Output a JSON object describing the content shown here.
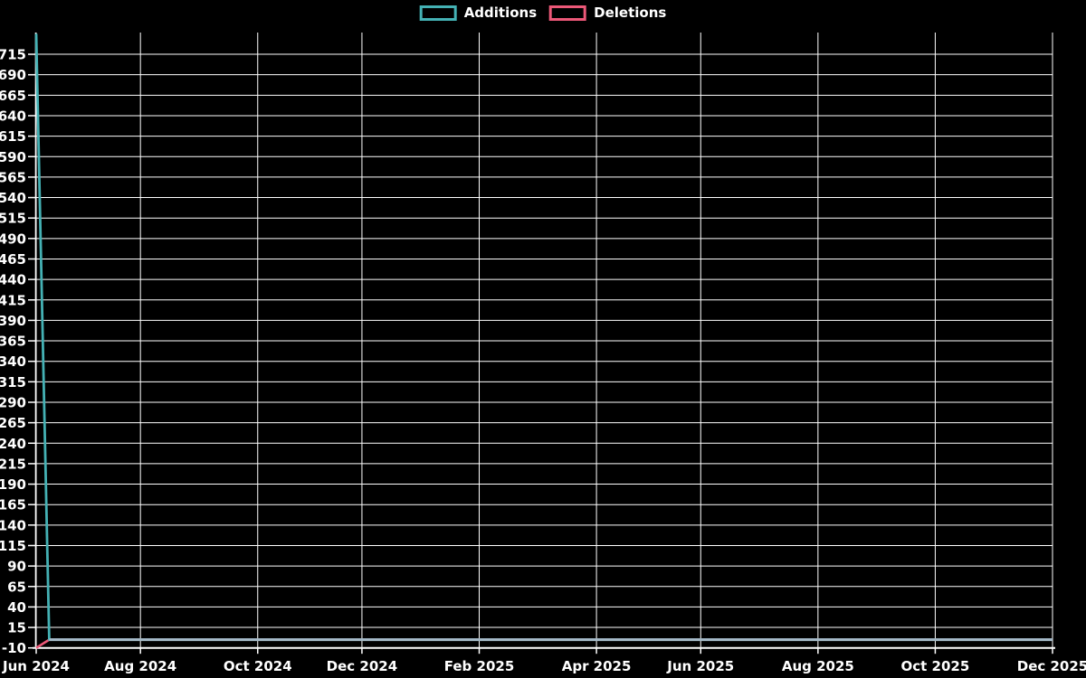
{
  "legend": {
    "items": [
      {
        "label": "Additions",
        "color": "#44b1b4"
      },
      {
        "label": "Deletions",
        "color": "#ec5878"
      }
    ]
  },
  "chart_data": {
    "type": "line",
    "title": "",
    "xlabel": "",
    "ylabel": "",
    "background_color": "#000000",
    "grid_color": "#ffffff",
    "text_color": "#ffffff",
    "grid": true,
    "legend_position": "top-center",
    "x_axis": {
      "unit": "weeks",
      "weeks_total": 78,
      "ticks": [
        {
          "label": "Jun 2024",
          "week": 0
        },
        {
          "label": "Aug 2024",
          "week": 8
        },
        {
          "label": "Oct 2024",
          "week": 17
        },
        {
          "label": "Dec 2024",
          "week": 25
        },
        {
          "label": "Feb 2025",
          "week": 34
        },
        {
          "label": "Apr 2025",
          "week": 43
        },
        {
          "label": "Jun 2025",
          "week": 51
        },
        {
          "label": "Aug 2025",
          "week": 60
        },
        {
          "label": "Oct 2025",
          "week": 69
        },
        {
          "label": "Dec 2025",
          "week": 78
        }
      ]
    },
    "y_axis": {
      "min": -10,
      "max": 740,
      "tick_step": 25,
      "tick_labels": [
        715,
        690,
        665,
        640,
        615,
        590,
        565,
        540,
        515,
        490,
        465,
        440,
        415,
        390,
        365,
        340,
        315,
        290,
        265,
        240,
        215,
        190,
        165,
        140,
        115,
        90,
        65,
        40,
        15,
        -10
      ]
    },
    "series": [
      {
        "name": "Additions",
        "color": "#44b1b4",
        "values": [
          740,
          0,
          0,
          0,
          0,
          0,
          0,
          0,
          0,
          0,
          0,
          0,
          0,
          0,
          0,
          0,
          0,
          0,
          0,
          0,
          0,
          0,
          0,
          0,
          0,
          0,
          0,
          0,
          0,
          0,
          0,
          0,
          0,
          0,
          0,
          0,
          0,
          0,
          0,
          0,
          0,
          0,
          0,
          0,
          0,
          0,
          0,
          0,
          0,
          0,
          0,
          0,
          0,
          0,
          0,
          0,
          0,
          0,
          0,
          0,
          0,
          0,
          0,
          0,
          0,
          0,
          0,
          0,
          0,
          0,
          0,
          0,
          0,
          0,
          0,
          0,
          0,
          0,
          0
        ]
      },
      {
        "name": "Deletions",
        "color": "#ec5878",
        "values": [
          -10,
          0,
          0,
          0,
          0,
          0,
          0,
          0,
          0,
          0,
          0,
          0,
          0,
          0,
          0,
          0,
          0,
          0,
          0,
          0,
          0,
          0,
          0,
          0,
          0,
          0,
          0,
          0,
          0,
          0,
          0,
          0,
          0,
          0,
          0,
          0,
          0,
          0,
          0,
          0,
          0,
          0,
          0,
          0,
          0,
          0,
          0,
          0,
          0,
          0,
          0,
          0,
          0,
          0,
          0,
          0,
          0,
          0,
          0,
          0,
          0,
          0,
          0,
          0,
          0,
          0,
          0,
          0,
          0,
          0,
          0,
          0,
          0,
          0,
          0,
          0,
          0,
          0,
          0
        ]
      }
    ],
    "overlap_line_color": "#a5bac8"
  }
}
